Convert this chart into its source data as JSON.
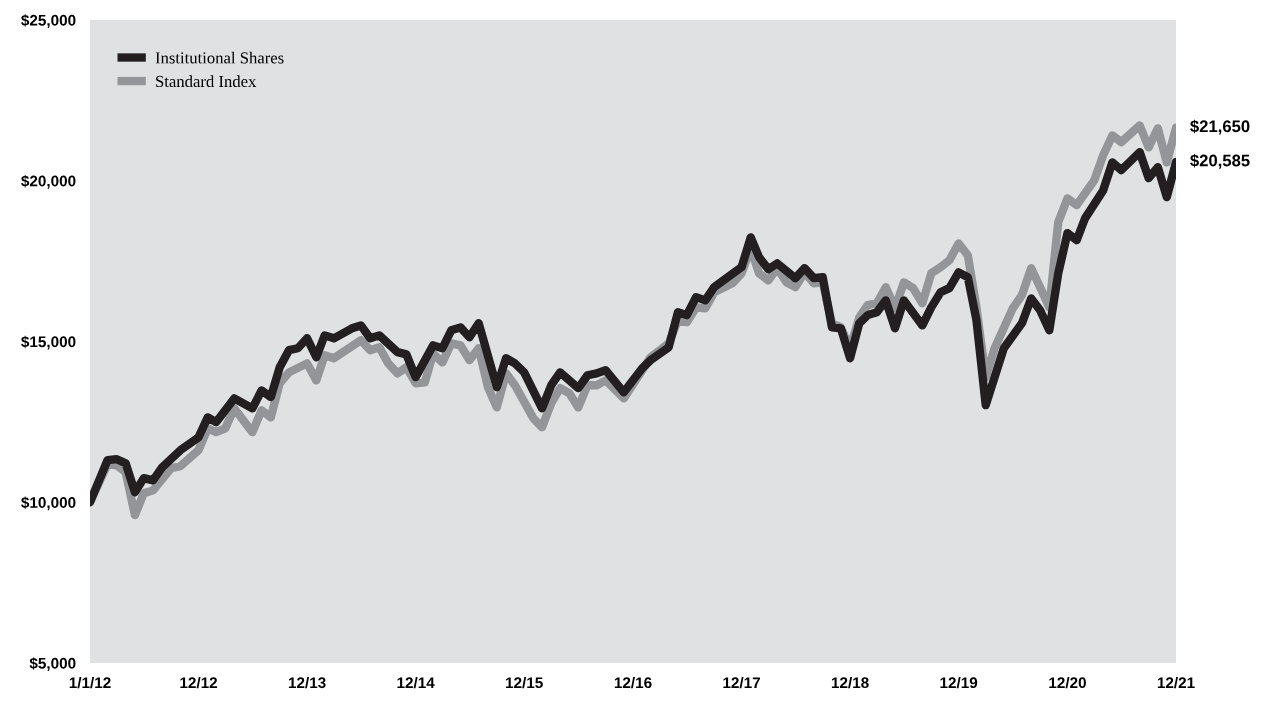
{
  "chart_data": {
    "type": "line",
    "xlim": [
      "2012-01-01",
      "2021-12-31"
    ],
    "xticks": [
      {
        "value": "2012-01-01",
        "label": "1/1/12"
      },
      {
        "value": "2012-12-31",
        "label": "12/12"
      },
      {
        "value": "2013-12-31",
        "label": "12/13"
      },
      {
        "value": "2014-12-31",
        "label": "12/14"
      },
      {
        "value": "2015-12-31",
        "label": "12/15"
      },
      {
        "value": "2016-12-31",
        "label": "12/16"
      },
      {
        "value": "2017-12-31",
        "label": "12/17"
      },
      {
        "value": "2018-12-31",
        "label": "12/18"
      },
      {
        "value": "2019-12-31",
        "label": "12/19"
      },
      {
        "value": "2020-12-31",
        "label": "12/20"
      },
      {
        "value": "2021-12-31",
        "label": "12/21"
      }
    ],
    "ylim": [
      5000,
      25000
    ],
    "yticks": [
      {
        "value": 5000,
        "label": "$5,000"
      },
      {
        "value": 10000,
        "label": "$10,000"
      },
      {
        "value": 15000,
        "label": "$15,000"
      },
      {
        "value": 20000,
        "label": "$20,000"
      },
      {
        "value": 25000,
        "label": "$25,000"
      }
    ],
    "grid": false,
    "legend": "top left",
    "line_style": "solid",
    "marker": "none",
    "annotations": [
      {
        "text": "$21,650",
        "x": "2021-12-31",
        "y": 21650
      },
      {
        "text": "$20,585",
        "x": "2021-12-31",
        "y": 20585
      }
    ],
    "series": [
      {
        "name": "Institutional Shares",
        "color": "#231f20",
        "x": [
          "2012-01-01",
          "2012-02-29",
          "2012-03-31",
          "2012-04-30",
          "2012-05-31",
          "2012-06-30",
          "2012-07-31",
          "2012-08-31",
          "2012-10-31",
          "2012-12-31",
          "2013-01-31",
          "2013-02-28",
          "2013-04-30",
          "2013-06-30",
          "2013-07-31",
          "2013-08-31",
          "2013-09-30",
          "2013-10-31",
          "2013-11-30",
          "2013-12-31",
          "2014-01-31",
          "2014-02-28",
          "2014-03-31",
          "2014-05-31",
          "2014-06-30",
          "2014-07-31",
          "2014-08-31",
          "2014-10-31",
          "2014-11-30",
          "2014-12-31",
          "2015-02-28",
          "2015-03-31",
          "2015-04-30",
          "2015-05-31",
          "2015-06-30",
          "2015-07-31",
          "2015-09-30",
          "2015-10-31",
          "2015-11-30",
          "2015-12-31",
          "2016-02-29",
          "2016-03-31",
          "2016-04-30",
          "2016-05-31",
          "2016-06-30",
          "2016-07-31",
          "2016-08-31",
          "2016-09-30",
          "2016-11-30",
          "2017-01-31",
          "2017-02-28",
          "2017-04-30",
          "2017-05-31",
          "2017-06-30",
          "2017-07-31",
          "2017-08-31",
          "2017-09-30",
          "2017-10-31",
          "2017-12-31",
          "2018-01-31",
          "2018-02-28",
          "2018-03-31",
          "2018-04-30",
          "2018-06-30",
          "2018-07-31",
          "2018-08-31",
          "2018-09-30",
          "2018-10-31",
          "2018-11-30",
          "2018-12-31",
          "2019-01-31",
          "2019-02-28",
          "2019-03-31",
          "2019-04-30",
          "2019-05-31",
          "2019-06-30",
          "2019-08-31",
          "2019-09-30",
          "2019-10-31",
          "2019-11-30",
          "2019-12-31",
          "2020-01-31",
          "2020-02-29",
          "2020-03-31",
          "2020-05-31",
          "2020-07-31",
          "2020-08-31",
          "2020-09-30",
          "2020-10-31",
          "2020-11-30",
          "2020-12-31",
          "2021-01-31",
          "2021-02-28",
          "2021-04-30",
          "2021-05-31",
          "2021-06-30",
          "2021-08-31",
          "2021-09-30",
          "2021-10-31",
          "2021-11-30",
          "2021-12-31"
        ],
        "values": [
          10000,
          11310,
          11340,
          11210,
          10310,
          10750,
          10680,
          11090,
          11620,
          12020,
          12640,
          12490,
          13230,
          12920,
          13480,
          13270,
          14200,
          14730,
          14790,
          15100,
          14510,
          15190,
          15100,
          15410,
          15500,
          15100,
          15190,
          14670,
          14600,
          13890,
          14880,
          14790,
          15350,
          15440,
          15130,
          15570,
          13580,
          14480,
          14320,
          14040,
          12920,
          13640,
          14040,
          13790,
          13550,
          13950,
          14010,
          14110,
          13420,
          14170,
          14420,
          14820,
          15910,
          15820,
          16380,
          16280,
          16690,
          16900,
          17310,
          18240,
          17620,
          17250,
          17430,
          16970,
          17280,
          16970,
          17000,
          15440,
          15410,
          14480,
          15570,
          15820,
          15910,
          16280,
          15410,
          16280,
          15500,
          16060,
          16530,
          16660,
          17150,
          17000,
          15660,
          13020,
          14790,
          15570,
          16340,
          15970,
          15350,
          17120,
          18370,
          18150,
          18830,
          19700,
          20570,
          20330,
          20890,
          20080,
          20420,
          19490,
          20585
        ]
      },
      {
        "name": "Standard Index",
        "color": "#939598",
        "x": [
          "2012-01-01",
          "2012-02-29",
          "2012-03-31",
          "2012-04-30",
          "2012-05-31",
          "2012-06-30",
          "2012-07-31",
          "2012-09-30",
          "2012-10-31",
          "2012-12-31",
          "2013-01-31",
          "2013-02-28",
          "2013-03-31",
          "2013-04-30",
          "2013-06-30",
          "2013-07-31",
          "2013-08-31",
          "2013-09-30",
          "2013-10-31",
          "2013-12-31",
          "2014-01-31",
          "2014-02-28",
          "2014-03-31",
          "2014-06-30",
          "2014-07-31",
          "2014-08-31",
          "2014-09-30",
          "2014-10-31",
          "2014-11-30",
          "2014-12-31",
          "2015-01-31",
          "2015-02-28",
          "2015-03-31",
          "2015-04-30",
          "2015-05-31",
          "2015-06-30",
          "2015-07-31",
          "2015-08-31",
          "2015-09-30",
          "2015-10-31",
          "2015-11-30",
          "2016-01-31",
          "2016-02-29",
          "2016-03-31",
          "2016-04-30",
          "2016-05-31",
          "2016-06-30",
          "2016-07-31",
          "2016-08-31",
          "2016-09-30",
          "2016-11-30",
          "2017-01-31",
          "2017-02-28",
          "2017-04-30",
          "2017-05-31",
          "2017-06-30",
          "2017-07-31",
          "2017-08-31",
          "2017-09-30",
          "2017-11-30",
          "2017-12-31",
          "2018-01-31",
          "2018-02-28",
          "2018-03-31",
          "2018-04-30",
          "2018-05-31",
          "2018-06-30",
          "2018-07-31",
          "2018-08-31",
          "2018-09-30",
          "2018-10-31",
          "2018-11-30",
          "2018-12-31",
          "2019-01-31",
          "2019-02-28",
          "2019-03-31",
          "2019-04-30",
          "2019-05-31",
          "2019-06-30",
          "2019-07-31",
          "2019-08-31",
          "2019-09-30",
          "2019-10-31",
          "2019-11-30",
          "2019-12-31",
          "2020-01-31",
          "2020-02-29",
          "2020-03-31",
          "2020-04-30",
          "2020-06-30",
          "2020-07-31",
          "2020-08-31",
          "2020-09-30",
          "2020-10-31",
          "2020-11-30",
          "2020-12-31",
          "2021-01-31",
          "2021-03-31",
          "2021-04-30",
          "2021-05-31",
          "2021-06-30",
          "2021-08-31",
          "2021-09-30",
          "2021-10-31",
          "2021-11-30",
          "2021-12-31"
        ],
        "values": [
          10000,
          11180,
          11150,
          10930,
          9600,
          10280,
          10370,
          11060,
          11120,
          11620,
          12300,
          12180,
          12300,
          12920,
          12180,
          12860,
          12640,
          13700,
          14040,
          14320,
          13790,
          14570,
          14480,
          15040,
          14730,
          14820,
          14320,
          14010,
          14200,
          13700,
          13730,
          14630,
          14350,
          14940,
          14880,
          14420,
          14790,
          13580,
          12950,
          14010,
          13640,
          12610,
          12330,
          13080,
          13550,
          13390,
          12950,
          13640,
          13640,
          13790,
          13230,
          14110,
          14510,
          14940,
          15660,
          15600,
          16060,
          16030,
          16530,
          16810,
          17120,
          17900,
          17120,
          16900,
          17280,
          16840,
          16690,
          17150,
          16810,
          16840,
          15570,
          15440,
          14790,
          15750,
          16130,
          16190,
          16690,
          16030,
          16840,
          16660,
          16190,
          17120,
          17310,
          17530,
          18050,
          17680,
          16060,
          13890,
          14790,
          16030,
          16440,
          17280,
          16690,
          16060,
          18710,
          19450,
          19240,
          20010,
          20790,
          21410,
          21200,
          21720,
          21040,
          21630,
          20570,
          21650
        ]
      }
    ]
  }
}
